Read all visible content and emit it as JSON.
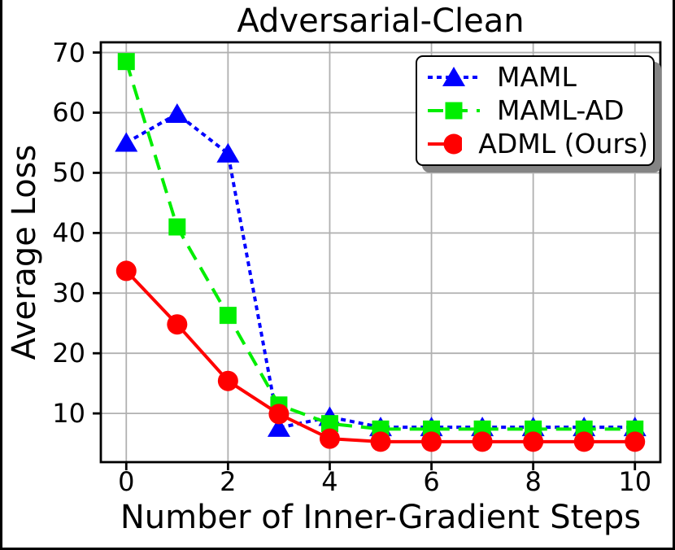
{
  "chart_data": {
    "type": "line",
    "title": "Adversarial-Clean",
    "xlabel": "Number of Inner-Gradient Steps",
    "ylabel": "Average Loss",
    "x": [
      0,
      1,
      2,
      3,
      4,
      5,
      6,
      7,
      8,
      9,
      10
    ],
    "series": [
      {
        "name": "MAML",
        "color": "#0000ff",
        "linestyle": "dotted",
        "marker": "triangle",
        "values": [
          55.0,
          59.8,
          53.2,
          7.6,
          9.4,
          7.7,
          7.7,
          7.7,
          7.7,
          7.7,
          7.7
        ]
      },
      {
        "name": "MAML-AD",
        "color": "#00ee00",
        "linestyle": "dashed",
        "marker": "square",
        "values": [
          68.5,
          41.0,
          26.3,
          11.4,
          8.3,
          7.4,
          7.4,
          7.4,
          7.4,
          7.4,
          7.4
        ]
      },
      {
        "name": "ADML (Ours)",
        "color": "#ff0000",
        "linestyle": "solid",
        "marker": "circle",
        "values": [
          33.7,
          24.8,
          15.4,
          9.9,
          5.8,
          5.3,
          5.3,
          5.3,
          5.3,
          5.3,
          5.3
        ]
      }
    ],
    "xticks": [
      0,
      2,
      4,
      6,
      8,
      10
    ],
    "yticks": [
      10,
      20,
      30,
      40,
      50,
      60,
      70
    ],
    "xlim": [
      -0.5,
      10.5
    ],
    "ylim": [
      1.9,
      71.7
    ],
    "grid": true,
    "grid_color": "#b0b0b0",
    "legend": {
      "position": "upper right",
      "shadow": true,
      "entries": [
        "MAML",
        "MAML-AD",
        "ADML (Ours)"
      ]
    }
  }
}
